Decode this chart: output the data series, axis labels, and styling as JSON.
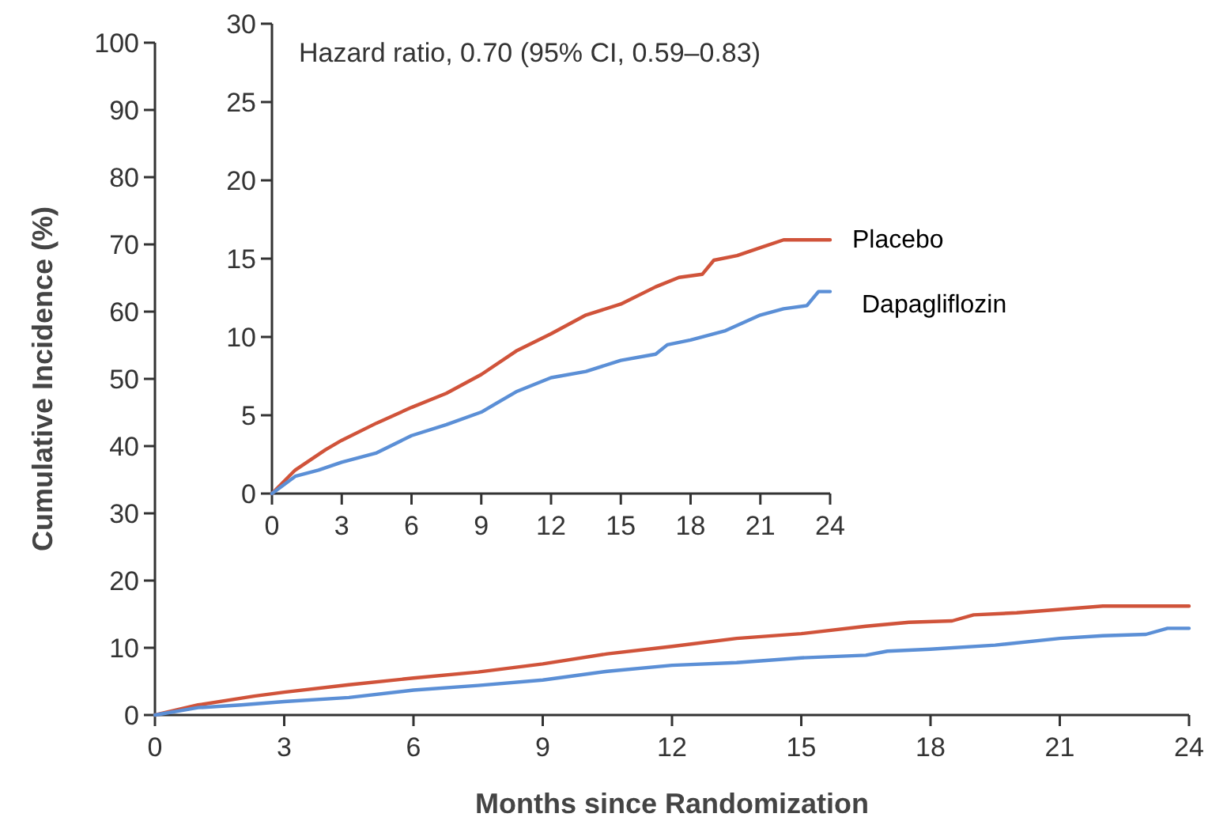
{
  "chart_data": [
    {
      "type": "line",
      "xlabel": "Months since Randomization",
      "ylabel": "Cumulative Incidence (%)",
      "xlim": [
        0,
        24
      ],
      "ylim": [
        0,
        100
      ],
      "xticks": [
        0,
        3,
        6,
        9,
        12,
        15,
        18,
        21,
        24
      ],
      "yticks": [
        0,
        10,
        20,
        30,
        40,
        50,
        60,
        70,
        80,
        90,
        100
      ],
      "series": [
        {
          "color": "#d0533a",
          "x": [
            0,
            1,
            2.3,
            3,
            4.5,
            6,
            7.5,
            9,
            10.5,
            12,
            13.5,
            15,
            16.5,
            17.5,
            18.5,
            19,
            20,
            21,
            22,
            24
          ],
          "values": [
            0,
            1.5,
            2.8,
            3.4,
            4.5,
            5.5,
            6.4,
            7.6,
            9.1,
            10.2,
            11.4,
            12.1,
            13.2,
            13.8,
            14.0,
            14.9,
            15.2,
            15.7,
            16.2,
            16.2
          ]
        },
        {
          "color": "#5b8fd6",
          "x": [
            0,
            1,
            2,
            3,
            4.5,
            6,
            7.5,
            9,
            10.5,
            12,
            13.5,
            15,
            16.5,
            17,
            18,
            19.5,
            21,
            22,
            23,
            23.5,
            24
          ],
          "values": [
            0,
            1.1,
            1.5,
            2.0,
            2.6,
            3.7,
            4.4,
            5.2,
            6.5,
            7.4,
            7.8,
            8.5,
            8.9,
            9.5,
            9.8,
            10.4,
            11.4,
            11.8,
            12.0,
            12.9,
            12.9
          ]
        }
      ]
    },
    {
      "type": "line",
      "annotations": [
        "Hazard ratio, 0.70 (95% CI, 0.59–0.83)"
      ],
      "xlim": [
        0,
        24
      ],
      "ylim": [
        0,
        30
      ],
      "xticks": [
        0,
        3,
        6,
        9,
        12,
        15,
        18,
        21,
        24
      ],
      "yticks": [
        0,
        5,
        10,
        15,
        20,
        25,
        30
      ],
      "series": [
        {
          "name": "Placebo",
          "color": "#d0533a",
          "x": [
            0,
            1,
            2.3,
            3,
            4.5,
            6,
            7.5,
            9,
            10.5,
            12,
            13.5,
            15,
            16.5,
            17.5,
            18.5,
            19,
            20,
            21,
            22,
            24
          ],
          "values": [
            0,
            1.5,
            2.8,
            3.4,
            4.5,
            5.5,
            6.4,
            7.6,
            9.1,
            10.2,
            11.4,
            12.1,
            13.2,
            13.8,
            14.0,
            14.9,
            15.2,
            15.7,
            16.2,
            16.2
          ]
        },
        {
          "name": "Dapagliflozin",
          "color": "#5b8fd6",
          "x": [
            0,
            1,
            2,
            3,
            4.5,
            6,
            7.5,
            9,
            10.5,
            12,
            13.5,
            15,
            16.5,
            17,
            18,
            19.5,
            21,
            22,
            23,
            23.5,
            24
          ],
          "values": [
            0,
            1.1,
            1.5,
            2.0,
            2.6,
            3.7,
            4.4,
            5.2,
            6.5,
            7.4,
            7.8,
            8.5,
            8.9,
            9.5,
            9.8,
            10.4,
            11.4,
            11.8,
            12.0,
            12.9,
            12.9
          ]
        }
      ]
    }
  ]
}
